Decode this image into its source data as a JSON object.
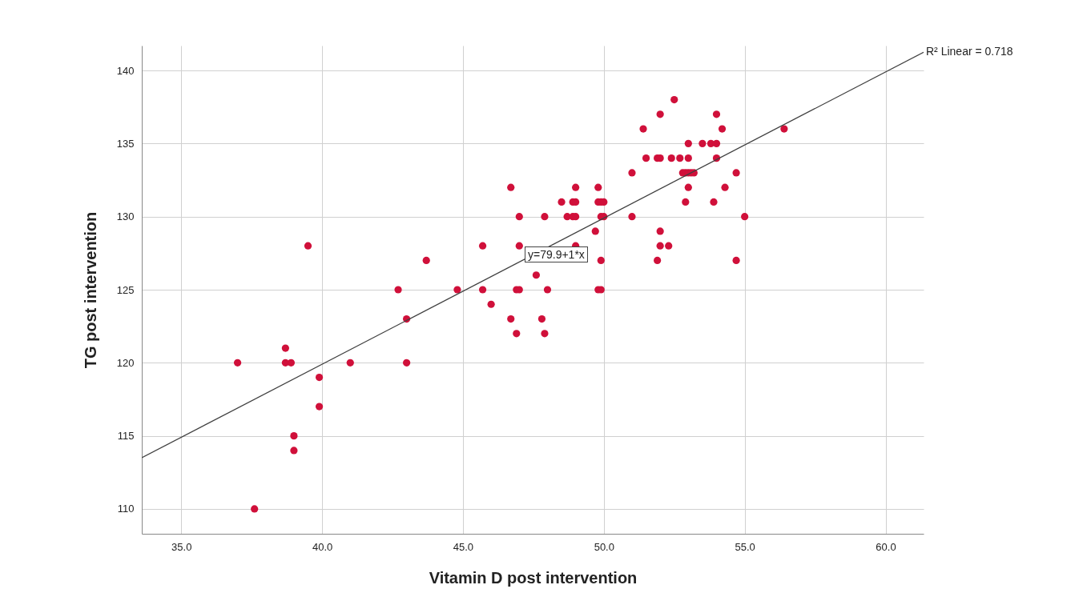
{
  "chart_data": {
    "type": "scatter",
    "xlabel": "Vitamin D post intervention",
    "ylabel": "TG post intervention",
    "xlim": [
      33.6,
      61.35
    ],
    "ylim": [
      108.3,
      141.7
    ],
    "xticks": [
      {
        "value": 35,
        "label": "35.0"
      },
      {
        "value": 40,
        "label": "40.0"
      },
      {
        "value": 45,
        "label": "45.0"
      },
      {
        "value": 50,
        "label": "50.0"
      },
      {
        "value": 55,
        "label": "55.0"
      },
      {
        "value": 60,
        "label": "60.0"
      }
    ],
    "yticks": [
      110,
      115,
      120,
      125,
      130,
      135,
      140
    ],
    "grid": true,
    "annotations": [
      {
        "text": "R² Linear = 0.718",
        "x": 61.35,
        "y": 141.25
      },
      "y=79.9+1*x"
    ],
    "series": [
      {
        "color": "#d0103a",
        "x": [
          37.0,
          37.6,
          38.7,
          38.7,
          38.9,
          39.0,
          39.0,
          39.5,
          39.9,
          39.9,
          41.0,
          42.7,
          43.0,
          43.0,
          43.7,
          44.8,
          45.7,
          45.7,
          46.0,
          46.7,
          46.7,
          46.9,
          46.9,
          47.0,
          47.0,
          47.0,
          47.6,
          47.8,
          47.9,
          47.9,
          48.0,
          48.5,
          48.7,
          48.9,
          48.9,
          49.0,
          49.0,
          49.0,
          49.0,
          49.7,
          49.8,
          49.8,
          49.8,
          49.9,
          49.9,
          49.9,
          50.0,
          50.0,
          49.9,
          51.0,
          51.0,
          51.4,
          51.5,
          51.9,
          51.9,
          52.0,
          52.0,
          52.0,
          52.0,
          52.3,
          52.4,
          52.5,
          52.7,
          52.8,
          52.9,
          52.9,
          53.0,
          53.0,
          53.0,
          53.0,
          53.1,
          53.2,
          53.5,
          53.8,
          53.9,
          54.0,
          54.0,
          54.0,
          54.2,
          54.3,
          54.7,
          54.7,
          55.0,
          56.4
        ],
        "values": [
          120,
          110,
          121,
          120,
          120,
          115,
          114,
          128,
          119,
          117,
          120,
          125,
          123,
          120,
          127,
          125,
          128,
          125,
          124,
          132,
          123,
          122,
          125,
          125,
          130,
          128,
          126,
          123,
          122,
          130,
          125,
          131,
          130,
          130,
          131,
          131,
          132,
          130,
          128,
          129,
          131,
          132,
          125,
          125,
          131,
          130,
          130,
          131,
          127,
          133,
          130,
          136,
          134,
          127,
          134,
          137,
          134,
          129,
          128,
          128,
          134,
          138,
          134,
          133,
          131,
          133,
          134,
          135,
          132,
          133,
          133,
          133,
          135,
          135,
          131,
          137,
          135,
          134,
          136,
          132,
          133,
          127,
          130,
          136
        ]
      },
      {
        "type": "line",
        "color": "#404040",
        "x": [
          33.6,
          61.35
        ],
        "values": [
          113.5,
          141.25
        ]
      }
    ]
  }
}
